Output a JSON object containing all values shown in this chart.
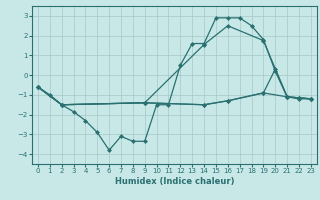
{
  "title": "",
  "xlabel": "Humidex (Indice chaleur)",
  "bg_color": "#c8e8e8",
  "line_color": "#2a7070",
  "grid_color": "#a8c8c8",
  "xlim": [
    -0.5,
    23.5
  ],
  "ylim": [
    -4.5,
    3.5
  ],
  "yticks": [
    -4,
    -3,
    -2,
    -1,
    0,
    1,
    2,
    3
  ],
  "xticks": [
    0,
    1,
    2,
    3,
    4,
    5,
    6,
    7,
    8,
    9,
    10,
    11,
    12,
    13,
    14,
    15,
    16,
    17,
    18,
    19,
    20,
    21,
    22,
    23
  ],
  "series1_x": [
    0,
    1,
    2,
    3,
    4,
    5,
    6,
    7,
    8,
    9,
    10,
    11,
    12,
    13,
    14,
    15,
    16,
    17,
    18,
    19,
    20,
    21,
    22,
    23
  ],
  "series1_y": [
    -0.6,
    -1.0,
    -1.5,
    -1.85,
    -2.3,
    -2.9,
    -3.8,
    -3.1,
    -3.35,
    -3.35,
    -1.5,
    -1.5,
    0.5,
    1.6,
    1.6,
    2.9,
    2.9,
    2.9,
    2.5,
    1.8,
    0.2,
    -1.1,
    -1.2,
    -1.2
  ],
  "series2_x": [
    0,
    2,
    9,
    14,
    16,
    19,
    21,
    22,
    23
  ],
  "series2_y": [
    -0.6,
    -1.5,
    -1.4,
    1.55,
    2.5,
    1.75,
    -1.1,
    -1.15,
    -1.2
  ],
  "series3_x": [
    0,
    2,
    9,
    14,
    16,
    19,
    20,
    21,
    22,
    23
  ],
  "series3_y": [
    -0.6,
    -1.5,
    -1.4,
    -1.5,
    -1.3,
    -0.9,
    0.3,
    -1.1,
    -1.15,
    -1.2
  ],
  "series4_x": [
    0,
    2,
    9,
    14,
    16,
    19,
    21,
    22,
    23
  ],
  "series4_y": [
    -0.6,
    -1.5,
    -1.4,
    -1.5,
    -1.3,
    -0.9,
    -1.1,
    -1.15,
    -1.2
  ]
}
